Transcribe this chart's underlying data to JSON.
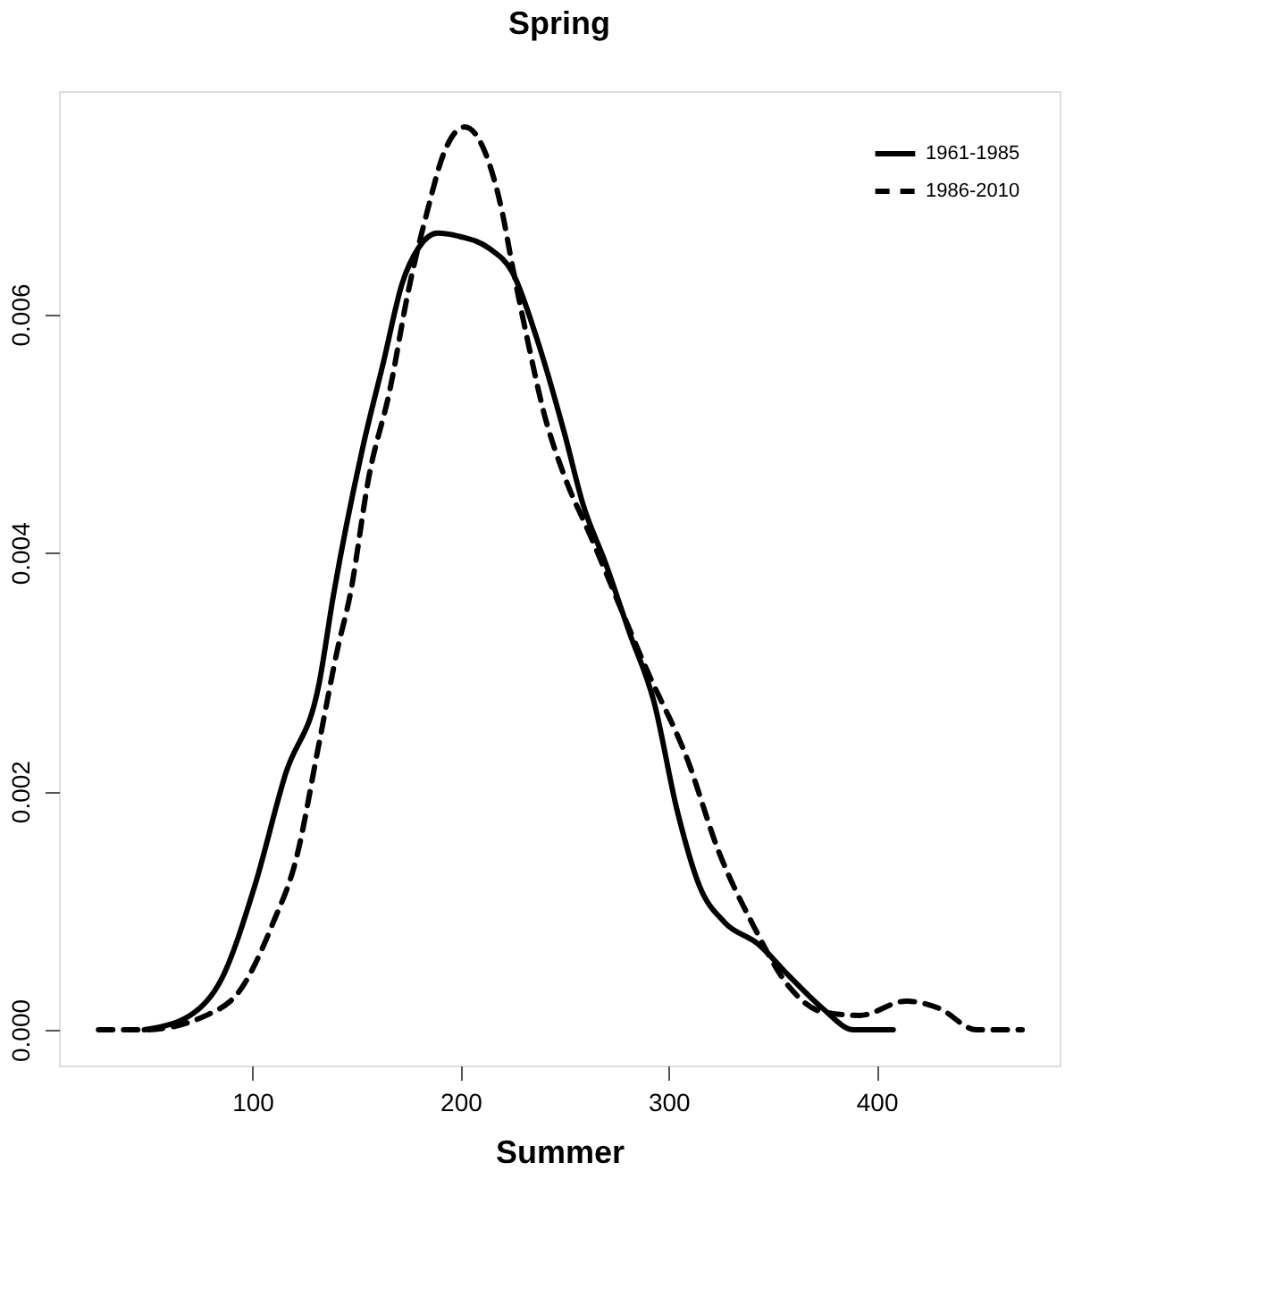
{
  "chart_data": {
    "type": "line",
    "title": "Spring",
    "xlabel": "Summer",
    "xlim": [
      7,
      488
    ],
    "ylim": [
      -0.0003,
      0.00787
    ],
    "xticks": [
      100,
      200,
      300,
      400
    ],
    "yticks": [
      {
        "value": 0,
        "label": "0.000"
      },
      {
        "value": 0.002,
        "label": "0.002"
      },
      {
        "value": 0.004,
        "label": "0.004"
      },
      {
        "value": 0.006,
        "label": "0.006"
      }
    ],
    "grid": false,
    "legend": "top right",
    "marker": "none",
    "series": [
      {
        "name": "1961-1985",
        "color": "#000000",
        "line_style": "solid",
        "x": [
          48,
          70,
          85,
          101,
          116,
          132,
          139,
          153,
          163,
          172,
          180,
          189,
          200,
          214,
          225,
          237,
          250,
          259,
          270,
          281,
          293,
          304,
          315,
          327,
          343,
          358,
          374,
          389,
          408
        ],
        "values": [
          0,
          0.00012,
          0.00042,
          0.0012,
          0.00215,
          0.0029,
          0.00365,
          0.00488,
          0.0056,
          0.00626,
          0.00656,
          0.00668,
          0.00665,
          0.00655,
          0.00635,
          0.00578,
          0.005,
          0.0044,
          0.0039,
          0.00334,
          0.00275,
          0.00185,
          0.0012,
          0.0009,
          0.00072,
          0.00045,
          0.00018,
          0,
          0
        ]
      },
      {
        "name": "1986-2010",
        "color": "#000000",
        "line_style": "dashed",
        "x": [
          26,
          48,
          79,
          94,
          110,
          121,
          132,
          141,
          147,
          156,
          166,
          175,
          184,
          192,
          202,
          212,
          220,
          225,
          233,
          240,
          250,
          262,
          290,
          309,
          324,
          340,
          358,
          374,
          392,
          414,
          430,
          448,
          470
        ],
        "values": [
          0,
          0,
          0.00013,
          0.00033,
          0.0009,
          0.00143,
          0.0024,
          0.0032,
          0.00365,
          0.00464,
          0.00536,
          0.0062,
          0.00686,
          0.00735,
          0.00757,
          0.00735,
          0.00686,
          0.0064,
          0.00572,
          0.00518,
          0.00464,
          0.00416,
          0.003,
          0.00227,
          0.0015,
          0.0009,
          0.00036,
          0.00015,
          0.00012,
          0.00024,
          0.00018,
          0,
          0
        ]
      }
    ]
  }
}
